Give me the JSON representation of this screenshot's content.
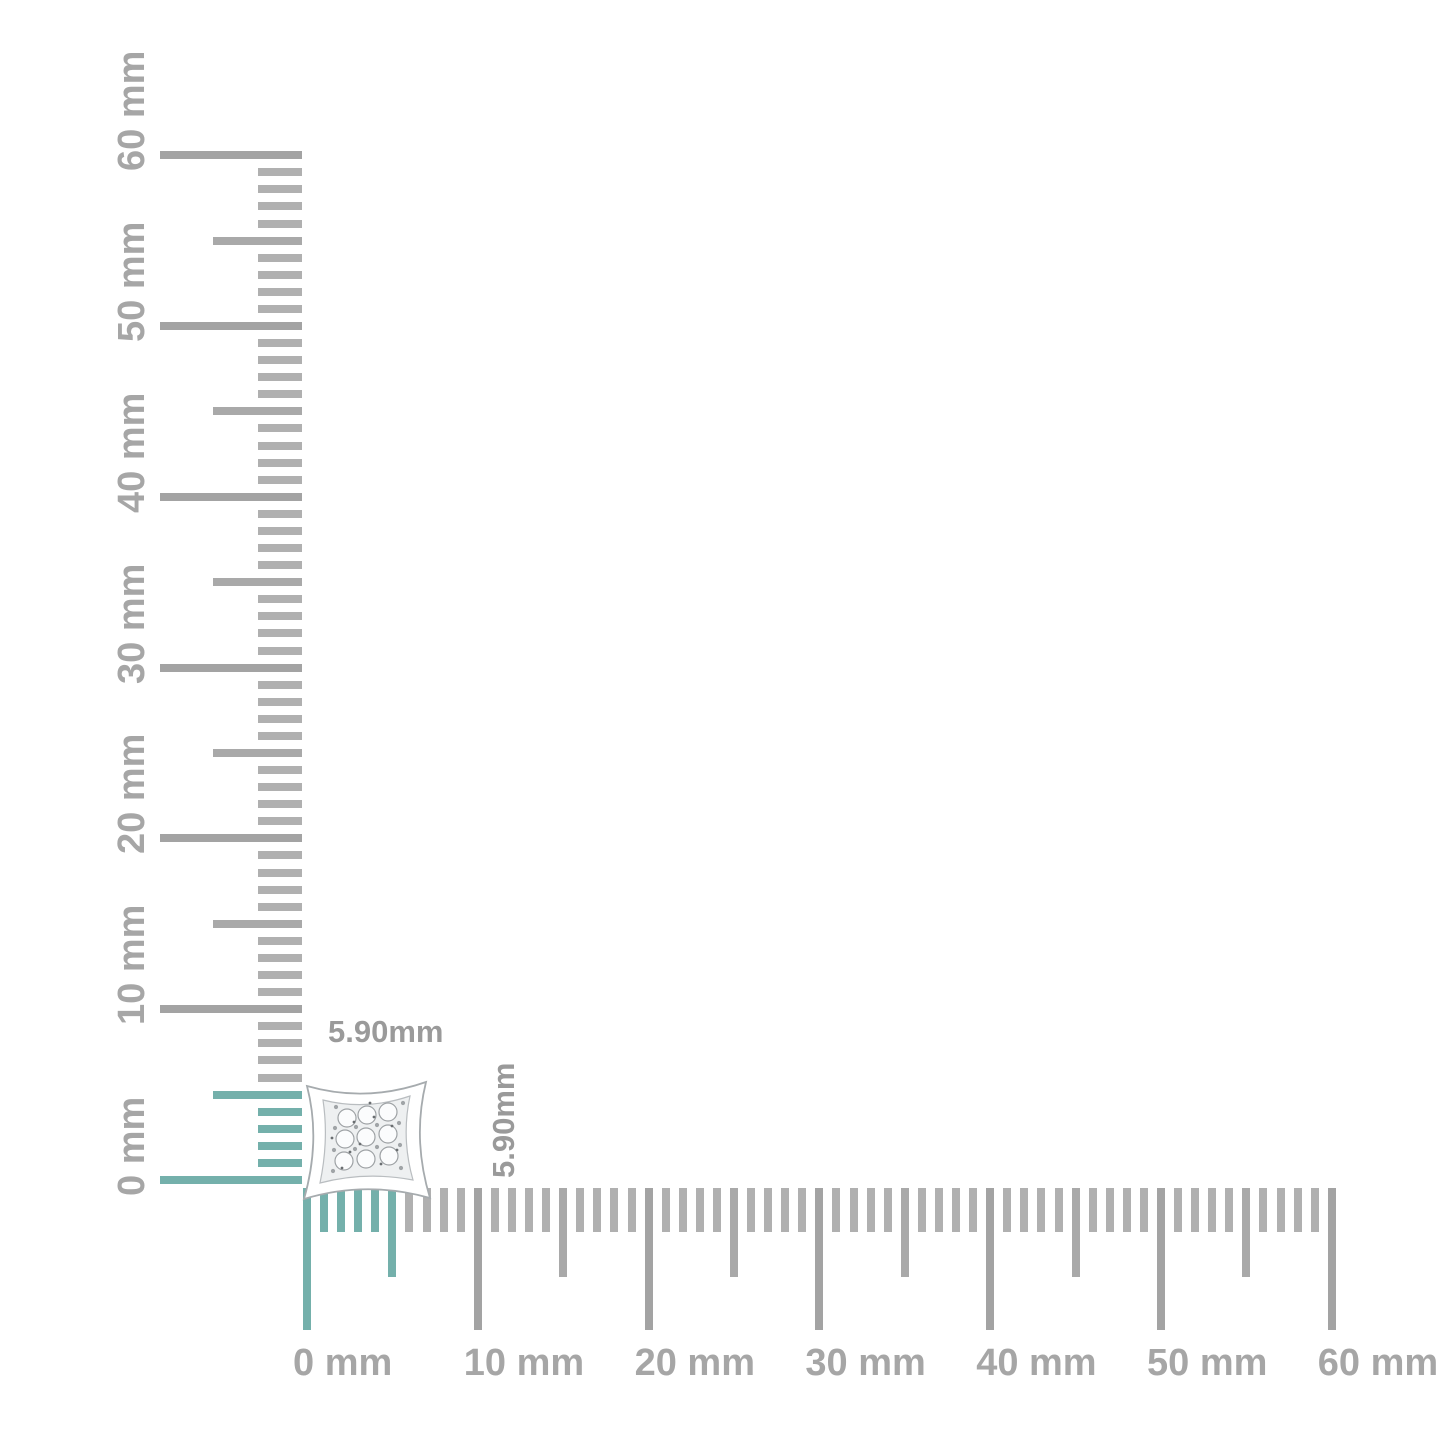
{
  "page": {
    "background": "#ffffff",
    "description": "Product measurement diagram: kite-shaped pave diamond stud earring shown at the corner origin of a vertical and a horizontal millimeter ruler"
  },
  "measurement": {
    "width_label": "5.90mm",
    "height_label": "5.90mm"
  },
  "rulers": {
    "unit": "mm",
    "min_mm": 0,
    "max_mm": 60,
    "minor_step_mm": 1,
    "medium_step_mm": 5,
    "major_step_mm": 10,
    "highlight_extent_mm": 5.9,
    "vertical_major_labels": [
      "0 mm",
      "10 mm",
      "20 mm",
      "30 mm",
      "40 mm",
      "50 mm",
      "60 mm"
    ],
    "horizontal_major_labels": [
      "0 mm",
      "10 mm",
      "20 mm",
      "30 mm",
      "40 mm",
      "50 mm",
      "60 mm"
    ]
  },
  "colors": {
    "highlight_teal": "#74b0ab",
    "tick_gray_minor": "#b0b0b0",
    "tick_gray_medium": "#a9a9a9",
    "tick_gray_major": "#a3a3a3",
    "ruler_label_gray": "#a6a6a6",
    "dimension_label_gray": "#9a9a9a"
  },
  "product": {
    "name": "kite-pave-diamond-stud-earring"
  }
}
